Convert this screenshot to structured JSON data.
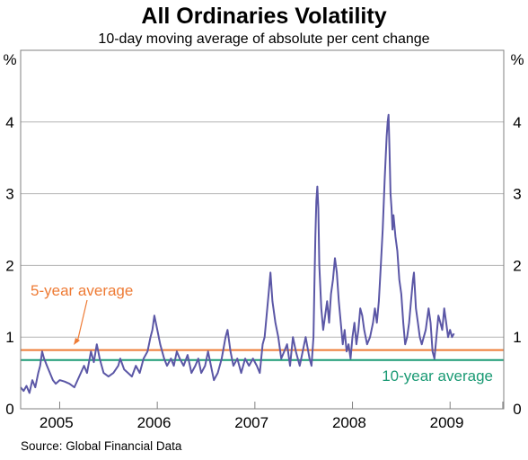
{
  "chart_data": {
    "type": "line",
    "title": "All Ordinaries Volatility",
    "subtitle": "10-day moving average of absolute per cent change",
    "y_unit_left": "%",
    "y_unit_right": "%",
    "ylim": [
      0,
      5
    ],
    "yticks": [
      0,
      1,
      2,
      3,
      4
    ],
    "ytick_labels": [
      "0",
      "1",
      "2",
      "3",
      "4"
    ],
    "xlim": [
      2004.6,
      2009.55
    ],
    "x_year_ticks": [
      2005,
      2006,
      2007,
      2008,
      2009,
      2009.54
    ],
    "x_labels": [
      {
        "year": 2005,
        "label": "2005"
      },
      {
        "year": 2006,
        "label": "2006"
      },
      {
        "year": 2007,
        "label": "2007"
      },
      {
        "year": 2008,
        "label": "2008"
      },
      {
        "year": 2009,
        "label": "2009"
      }
    ],
    "grid": true,
    "source": "Source: Global Financial Data",
    "colors": {
      "series": "#5b57a6",
      "five_year": "#ee7b35",
      "ten_year": "#1a9a74",
      "grid": "#b3b3b3"
    },
    "reference_lines": [
      {
        "name": "5-year average",
        "value": 0.82
      },
      {
        "name": "10-year average",
        "value": 0.68
      }
    ],
    "annotations": [
      {
        "text": "5-year average",
        "target": "five_year"
      },
      {
        "text": "10-year average",
        "target": "ten_year"
      }
    ],
    "series": [
      {
        "points": [
          [
            2004.6,
            0.3
          ],
          [
            2004.63,
            0.25
          ],
          [
            2004.66,
            0.32
          ],
          [
            2004.69,
            0.22
          ],
          [
            2004.72,
            0.4
          ],
          [
            2004.75,
            0.3
          ],
          [
            2004.78,
            0.5
          ],
          [
            2004.8,
            0.6
          ],
          [
            2004.82,
            0.8
          ],
          [
            2004.84,
            0.7
          ],
          [
            2004.87,
            0.6
          ],
          [
            2004.9,
            0.5
          ],
          [
            2004.93,
            0.4
          ],
          [
            2004.96,
            0.35
          ],
          [
            2005.0,
            0.4
          ],
          [
            2005.05,
            0.38
          ],
          [
            2005.1,
            0.35
          ],
          [
            2005.15,
            0.3
          ],
          [
            2005.2,
            0.45
          ],
          [
            2005.25,
            0.6
          ],
          [
            2005.28,
            0.5
          ],
          [
            2005.32,
            0.8
          ],
          [
            2005.35,
            0.65
          ],
          [
            2005.38,
            0.9
          ],
          [
            2005.41,
            0.7
          ],
          [
            2005.45,
            0.5
          ],
          [
            2005.5,
            0.45
          ],
          [
            2005.55,
            0.5
          ],
          [
            2005.6,
            0.6
          ],
          [
            2005.62,
            0.7
          ],
          [
            2005.66,
            0.55
          ],
          [
            2005.7,
            0.5
          ],
          [
            2005.74,
            0.45
          ],
          [
            2005.78,
            0.6
          ],
          [
            2005.82,
            0.5
          ],
          [
            2005.86,
            0.7
          ],
          [
            2005.9,
            0.8
          ],
          [
            2005.93,
            1.0
          ],
          [
            2005.95,
            1.1
          ],
          [
            2005.97,
            1.3
          ],
          [
            2006.0,
            1.1
          ],
          [
            2006.03,
            0.9
          ],
          [
            2006.07,
            0.7
          ],
          [
            2006.1,
            0.6
          ],
          [
            2006.14,
            0.7
          ],
          [
            2006.17,
            0.6
          ],
          [
            2006.2,
            0.8
          ],
          [
            2006.23,
            0.7
          ],
          [
            2006.27,
            0.6
          ],
          [
            2006.31,
            0.75
          ],
          [
            2006.35,
            0.5
          ],
          [
            2006.39,
            0.6
          ],
          [
            2006.42,
            0.7
          ],
          [
            2006.45,
            0.5
          ],
          [
            2006.49,
            0.6
          ],
          [
            2006.52,
            0.8
          ],
          [
            2006.55,
            0.6
          ],
          [
            2006.58,
            0.4
          ],
          [
            2006.62,
            0.5
          ],
          [
            2006.66,
            0.7
          ],
          [
            2006.7,
            1.0
          ],
          [
            2006.72,
            1.1
          ],
          [
            2006.75,
            0.8
          ],
          [
            2006.78,
            0.6
          ],
          [
            2006.82,
            0.7
          ],
          [
            2006.86,
            0.5
          ],
          [
            2006.9,
            0.7
          ],
          [
            2006.94,
            0.6
          ],
          [
            2006.98,
            0.7
          ],
          [
            2007.02,
            0.6
          ],
          [
            2007.05,
            0.5
          ],
          [
            2007.08,
            0.9
          ],
          [
            2007.1,
            1.0
          ],
          [
            2007.12,
            1.3
          ],
          [
            2007.14,
            1.6
          ],
          [
            2007.16,
            1.9
          ],
          [
            2007.18,
            1.5
          ],
          [
            2007.21,
            1.2
          ],
          [
            2007.24,
            1.0
          ],
          [
            2007.27,
            0.7
          ],
          [
            2007.3,
            0.8
          ],
          [
            2007.33,
            0.9
          ],
          [
            2007.36,
            0.6
          ],
          [
            2007.39,
            1.0
          ],
          [
            2007.42,
            0.8
          ],
          [
            2007.46,
            0.6
          ],
          [
            2007.49,
            0.8
          ],
          [
            2007.52,
            1.0
          ],
          [
            2007.56,
            0.7
          ],
          [
            2007.58,
            0.6
          ],
          [
            2007.6,
            1.0
          ],
          [
            2007.61,
            1.7
          ],
          [
            2007.62,
            2.4
          ],
          [
            2007.63,
            2.9
          ],
          [
            2007.64,
            3.1
          ],
          [
            2007.65,
            2.8
          ],
          [
            2007.66,
            2.0
          ],
          [
            2007.68,
            1.4
          ],
          [
            2007.7,
            1.1
          ],
          [
            2007.72,
            1.3
          ],
          [
            2007.74,
            1.5
          ],
          [
            2007.76,
            1.2
          ],
          [
            2007.78,
            1.6
          ],
          [
            2007.8,
            1.8
          ],
          [
            2007.82,
            2.1
          ],
          [
            2007.84,
            1.9
          ],
          [
            2007.86,
            1.5
          ],
          [
            2007.88,
            1.2
          ],
          [
            2007.9,
            0.9
          ],
          [
            2007.92,
            1.1
          ],
          [
            2007.94,
            0.8
          ],
          [
            2007.96,
            0.9
          ],
          [
            2007.98,
            0.7
          ],
          [
            2008.0,
            1.0
          ],
          [
            2008.02,
            1.2
          ],
          [
            2008.04,
            0.9
          ],
          [
            2008.06,
            1.1
          ],
          [
            2008.08,
            1.4
          ],
          [
            2008.1,
            1.3
          ],
          [
            2008.12,
            1.1
          ],
          [
            2008.15,
            0.9
          ],
          [
            2008.18,
            1.0
          ],
          [
            2008.21,
            1.2
          ],
          [
            2008.23,
            1.4
          ],
          [
            2008.25,
            1.2
          ],
          [
            2008.27,
            1.5
          ],
          [
            2008.29,
            2.0
          ],
          [
            2008.31,
            2.5
          ],
          [
            2008.33,
            3.2
          ],
          [
            2008.35,
            3.8
          ],
          [
            2008.36,
            4.0
          ],
          [
            2008.37,
            4.1
          ],
          [
            2008.38,
            3.6
          ],
          [
            2008.39,
            3.0
          ],
          [
            2008.4,
            2.8
          ],
          [
            2008.41,
            2.5
          ],
          [
            2008.42,
            2.7
          ],
          [
            2008.44,
            2.4
          ],
          [
            2008.46,
            2.2
          ],
          [
            2008.48,
            1.8
          ],
          [
            2008.5,
            1.6
          ],
          [
            2008.52,
            1.2
          ],
          [
            2008.54,
            0.9
          ],
          [
            2008.56,
            1.0
          ],
          [
            2008.58,
            1.2
          ],
          [
            2008.6,
            1.5
          ],
          [
            2008.62,
            1.8
          ],
          [
            2008.63,
            1.9
          ],
          [
            2008.65,
            1.4
          ],
          [
            2008.67,
            1.2
          ],
          [
            2008.69,
            1.0
          ],
          [
            2008.71,
            0.9
          ],
          [
            2008.73,
            1.0
          ],
          [
            2008.75,
            1.1
          ],
          [
            2008.78,
            1.4
          ],
          [
            2008.8,
            1.2
          ],
          [
            2008.82,
            0.8
          ],
          [
            2008.84,
            0.7
          ],
          [
            2008.86,
            1.0
          ],
          [
            2008.88,
            1.3
          ],
          [
            2008.9,
            1.2
          ],
          [
            2008.92,
            1.1
          ],
          [
            2008.94,
            1.4
          ],
          [
            2008.96,
            1.2
          ],
          [
            2008.98,
            1.0
          ],
          [
            2009.0,
            1.1
          ],
          [
            2009.02,
            1.0
          ],
          [
            2009.04,
            1.05
          ]
        ]
      }
    ]
  }
}
